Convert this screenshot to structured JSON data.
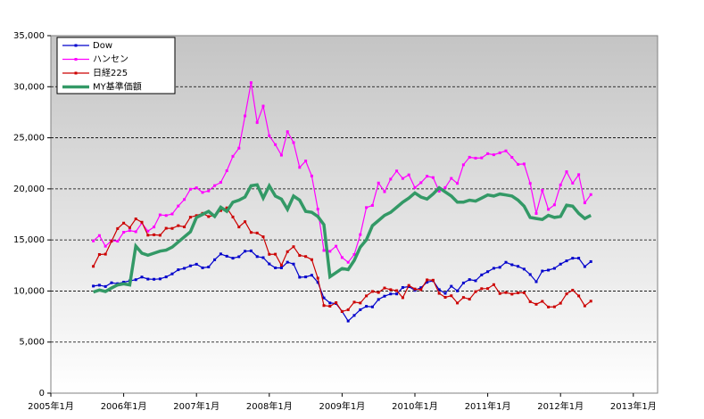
{
  "chart_data": {
    "type": "line",
    "x": [
      "2005-08",
      "2005-09",
      "2005-10",
      "2005-11",
      "2005-12",
      "2006-01",
      "2006-02",
      "2006-03",
      "2006-04",
      "2006-05",
      "2006-06",
      "2006-07",
      "2006-08",
      "2006-09",
      "2006-10",
      "2006-11",
      "2006-12",
      "2007-01",
      "2007-02",
      "2007-03",
      "2007-04",
      "2007-05",
      "2007-06",
      "2007-07",
      "2007-08",
      "2007-09",
      "2007-10",
      "2007-11",
      "2007-12",
      "2008-01",
      "2008-02",
      "2008-03",
      "2008-04",
      "2008-05",
      "2008-06",
      "2008-07",
      "2008-08",
      "2008-09",
      "2008-10",
      "2008-11",
      "2008-12",
      "2009-01",
      "2009-02",
      "2009-03",
      "2009-04",
      "2009-05",
      "2009-06",
      "2009-07",
      "2009-08",
      "2009-09",
      "2009-10",
      "2009-11",
      "2009-12",
      "2010-01",
      "2010-02",
      "2010-03",
      "2010-04",
      "2010-05",
      "2010-06",
      "2010-07",
      "2010-08",
      "2010-09",
      "2010-10",
      "2010-11",
      "2010-12",
      "2011-01",
      "2011-02",
      "2011-03",
      "2011-04",
      "2011-05",
      "2011-06",
      "2011-07",
      "2011-08",
      "2011-09",
      "2011-10",
      "2011-11",
      "2011-12",
      "2012-01",
      "2012-02",
      "2012-03",
      "2012-04",
      "2012-05",
      "2012-06"
    ],
    "series": [
      {
        "name": "Dow",
        "color": "#0000cc",
        "values": [
          10482,
          10569,
          10440,
          10806,
          10718,
          10865,
          10993,
          11109,
          11367,
          11168,
          11150,
          11186,
          11381,
          11679,
          12081,
          12221,
          12463,
          12622,
          12269,
          12354,
          13063,
          13628,
          13409,
          13212,
          13358,
          13896,
          13930,
          13372,
          13265,
          12650,
          12266,
          12263,
          12820,
          12638,
          11350,
          11378,
          11544,
          10851,
          9325,
          8829,
          8776,
          8000,
          7063,
          7609,
          8168,
          8500,
          8447,
          9172,
          9496,
          9712,
          9713,
          10345,
          10428,
          10067,
          10325,
          10857,
          11009,
          10137,
          9774,
          10466,
          10015,
          10788,
          11118,
          11006,
          11578,
          11892,
          12226,
          12320,
          12811,
          12570,
          12414,
          12143,
          11614,
          10913,
          11955,
          12046,
          12218,
          12633,
          12952,
          13212,
          13214,
          12393,
          12880
        ]
      },
      {
        "name": "ハンセン",
        "color": "#ff00ff",
        "values": [
          14904,
          15429,
          14386,
          14937,
          14876,
          15753,
          15918,
          15805,
          16661,
          15857,
          16267,
          17454,
          17392,
          17543,
          18324,
          18960,
          19965,
          20106,
          19652,
          19801,
          20319,
          20635,
          21773,
          23185,
          23984,
          27143,
          30400,
          26500,
          28100,
          25200,
          24332,
          23300,
          25600,
          24533,
          22102,
          22731,
          21262,
          18016,
          13969,
          13888,
          14387,
          13278,
          12812,
          13576,
          15521,
          18171,
          18379,
          20573,
          19724,
          20955,
          21753,
          21021,
          21373,
          20122,
          20608,
          21239,
          21108,
          19765,
          20129,
          21029,
          20536,
          22359,
          23096,
          23008,
          23035,
          23447,
          23338,
          23528,
          23721,
          23084,
          22398,
          22440,
          20535,
          17592,
          19864,
          17989,
          18434,
          20390,
          21680,
          20556,
          21394,
          18630,
          19441
        ]
      },
      {
        "name": "日経225",
        "color": "#cc0000",
        "values": [
          12413,
          13574,
          13607,
          14872,
          16111,
          16650,
          16205,
          17060,
          16733,
          15467,
          15505,
          15457,
          16141,
          16128,
          16399,
          16274,
          17226,
          17383,
          17604,
          17288,
          17400,
          17876,
          18138,
          17248,
          16269,
          16786,
          15737,
          15680,
          15308,
          13592,
          13603,
          12526,
          13850,
          14339,
          13481,
          13377,
          13073,
          11260,
          8577,
          8512,
          8860,
          7994,
          8168,
          8910,
          8828,
          9523,
          9958,
          9857,
          10293,
          10133,
          10035,
          9346,
          10546,
          10198,
          10126,
          11090,
          11057,
          9769,
          9383,
          9537,
          8824,
          9369,
          9202,
          9937,
          10229,
          10238,
          10624,
          9755,
          9850,
          9694,
          9816,
          9833,
          8955,
          8700,
          8988,
          8435,
          8455,
          8803,
          9723,
          10084,
          9521,
          8543,
          9007
        ]
      },
      {
        "name": "MY基準価額",
        "color": "#339966",
        "values": [
          9900,
          10100,
          9950,
          10300,
          10600,
          10700,
          10600,
          14400,
          13700,
          13500,
          13700,
          13900,
          14000,
          14300,
          14800,
          15300,
          15800,
          17200,
          17500,
          17800,
          17300,
          18200,
          17800,
          18700,
          18900,
          19200,
          20300,
          20400,
          19100,
          20300,
          19300,
          19000,
          18000,
          19300,
          18900,
          17800,
          17700,
          17300,
          16500,
          11400,
          11800,
          12200,
          12100,
          13000,
          14300,
          15000,
          16400,
          16900,
          17400,
          17700,
          18200,
          18700,
          19100,
          19600,
          19200,
          19000,
          19500,
          20100,
          19700,
          19300,
          18700,
          18700,
          18900,
          18800,
          19100,
          19400,
          19300,
          19500,
          19400,
          19300,
          18900,
          18300,
          17200,
          17100,
          17000,
          17400,
          17200,
          17300,
          18400,
          18300,
          17600,
          17100,
          17400
        ]
      }
    ],
    "xlim": [
      "2005-01",
      "2013-05"
    ],
    "xticks": [
      {
        "value": "2005-01",
        "label": "2005年1月"
      },
      {
        "value": "2006-01",
        "label": "2006年1月"
      },
      {
        "value": "2007-01",
        "label": "2007年1月"
      },
      {
        "value": "2008-01",
        "label": "2008年1月"
      },
      {
        "value": "2009-01",
        "label": "2009年1月"
      },
      {
        "value": "2010-01",
        "label": "2010年1月"
      },
      {
        "value": "2011-01",
        "label": "2011年1月"
      },
      {
        "value": "2012-01",
        "label": "2012年1月"
      },
      {
        "value": "2013-01",
        "label": "2013年1月"
      }
    ],
    "ylim": [
      0,
      35000
    ],
    "yticks": [
      0,
      {
        "value": 5000,
        "label": "5,000"
      },
      {
        "value": 10000,
        "label": "10,000"
      },
      {
        "value": 15000,
        "label": "15,000"
      },
      {
        "value": 20000,
        "label": "20,000"
      },
      {
        "value": 25000,
        "label": "25,000"
      },
      {
        "value": 30000,
        "label": "30,000"
      },
      {
        "value": 35000,
        "label": "35,000"
      }
    ],
    "grid": true,
    "legend": "upper left"
  }
}
